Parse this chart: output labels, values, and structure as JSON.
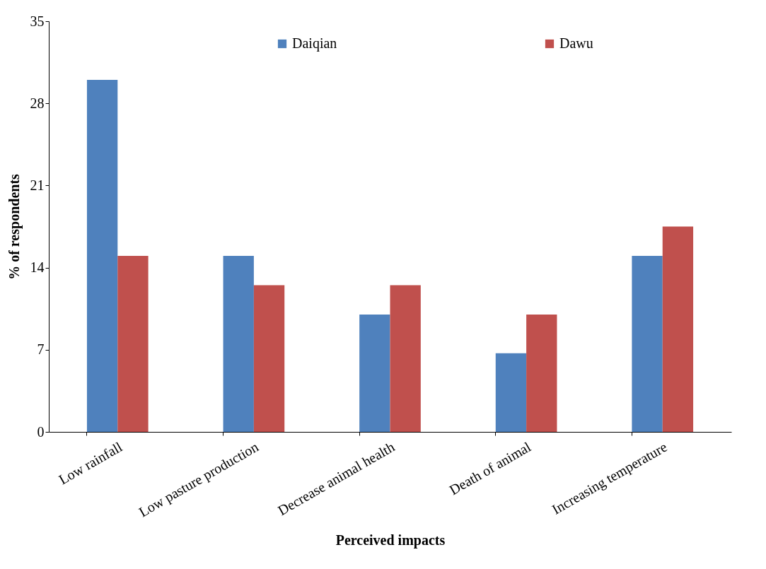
{
  "chart_data": {
    "type": "bar",
    "xlabel": "Perceived impacts",
    "ylabel": "% of respondents",
    "categories": [
      "Low rainfall",
      "Low pasture production",
      "Decrease animal health",
      "Death of animal",
      "Increasing temperature"
    ],
    "series": [
      {
        "name": "Daiqian",
        "color": "#4f81bd",
        "values": [
          30,
          15,
          10,
          6.7,
          15
        ]
      },
      {
        "name": "Dawu",
        "color": "#c0504d",
        "values": [
          15,
          12.5,
          12.5,
          10,
          17.5
        ]
      }
    ],
    "ylim": [
      0,
      35
    ],
    "yticks": [
      0,
      7,
      14,
      21,
      28,
      35
    ],
    "grid": false,
    "legend": "top"
  }
}
